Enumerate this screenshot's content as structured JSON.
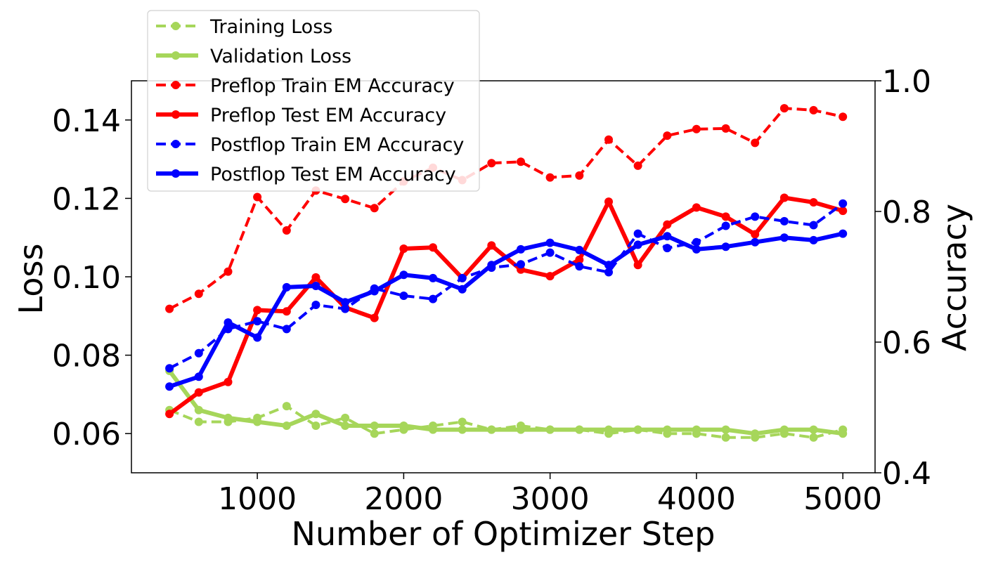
{
  "chart_data": {
    "type": "line",
    "title": "",
    "xlabel": "Number of Optimizer Step",
    "ylabel_left": "Loss",
    "ylabel_right": "Accuracy",
    "xlim": [
      140,
      5220
    ],
    "ylim_left": [
      0.05,
      0.15
    ],
    "ylim_right": [
      0.4,
      1.0
    ],
    "x_ticks": [
      1000,
      2000,
      3000,
      4000,
      5000
    ],
    "y_ticks_left": [
      0.06,
      0.08,
      0.1,
      0.12,
      0.14
    ],
    "y_ticks_right": [
      0.4,
      0.6,
      0.8,
      1.0
    ],
    "x_tick_labels": [
      "1000",
      "2000",
      "3000",
      "4000",
      "5000"
    ],
    "y_tick_labels_left": [
      "0.06",
      "0.08",
      "0.10",
      "0.12",
      "0.14"
    ],
    "y_tick_labels_right": [
      "0.4",
      "0.6",
      "0.8",
      "1.0"
    ],
    "grid": false,
    "legend_position": "top-left",
    "x": [
      400,
      600,
      800,
      1000,
      1200,
      1400,
      1600,
      1800,
      2000,
      2200,
      2400,
      2600,
      2800,
      3000,
      3200,
      3400,
      3600,
      3800,
      4000,
      4200,
      4400,
      4600,
      4800,
      5000
    ],
    "series": [
      {
        "name": "Training Loss",
        "axis": "left",
        "color": "#a6d65a",
        "style": "dashed",
        "values": [
          0.066,
          0.063,
          0.063,
          0.064,
          0.067,
          0.062,
          0.064,
          0.06,
          0.061,
          0.062,
          0.063,
          0.061,
          0.062,
          0.061,
          0.061,
          0.06,
          0.061,
          0.06,
          0.06,
          0.059,
          0.059,
          0.06,
          0.059,
          0.061
        ]
      },
      {
        "name": "Validation Loss",
        "axis": "left",
        "color": "#a6d65a",
        "style": "solid",
        "values": [
          0.076,
          0.066,
          0.064,
          0.063,
          0.062,
          0.065,
          0.062,
          0.062,
          0.062,
          0.061,
          0.061,
          0.061,
          0.061,
          0.061,
          0.061,
          0.061,
          0.061,
          0.061,
          0.061,
          0.061,
          0.06,
          0.061,
          0.061,
          0.06
        ]
      },
      {
        "name": "Preflop Train EM Accuracy",
        "axis": "right",
        "color": "#ff0000",
        "style": "dashed",
        "values": [
          0.651,
          0.674,
          0.708,
          0.822,
          0.771,
          0.832,
          0.819,
          0.805,
          0.846,
          0.867,
          0.848,
          0.874,
          0.876,
          0.852,
          0.855,
          0.91,
          0.87,
          0.916,
          0.926,
          0.927,
          0.905,
          0.958,
          0.955,
          0.945
        ]
      },
      {
        "name": "Preflop Test EM Accuracy",
        "axis": "right",
        "color": "#ff0000",
        "style": "solid",
        "values": [
          0.49,
          0.523,
          0.539,
          0.649,
          0.647,
          0.699,
          0.653,
          0.637,
          0.743,
          0.745,
          0.698,
          0.748,
          0.711,
          0.701,
          0.726,
          0.815,
          0.718,
          0.78,
          0.806,
          0.792,
          0.765,
          0.821,
          0.814,
          0.801
        ]
      },
      {
        "name": "Postflop Train EM Accuracy",
        "axis": "right",
        "color": "#0000ff",
        "style": "dashed",
        "values": [
          0.56,
          0.583,
          0.62,
          0.632,
          0.62,
          0.657,
          0.651,
          0.682,
          0.671,
          0.666,
          0.698,
          0.714,
          0.719,
          0.737,
          0.716,
          0.707,
          0.766,
          0.744,
          0.753,
          0.778,
          0.792,
          0.785,
          0.779,
          0.812
        ]
      },
      {
        "name": "Postflop Test EM Accuracy",
        "axis": "right",
        "color": "#0000ff",
        "style": "solid",
        "values": [
          0.532,
          0.547,
          0.63,
          0.607,
          0.684,
          0.686,
          0.661,
          0.678,
          0.703,
          0.698,
          0.681,
          0.718,
          0.742,
          0.752,
          0.741,
          0.718,
          0.749,
          0.762,
          0.742,
          0.746,
          0.753,
          0.76,
          0.756,
          0.766
        ]
      }
    ]
  }
}
